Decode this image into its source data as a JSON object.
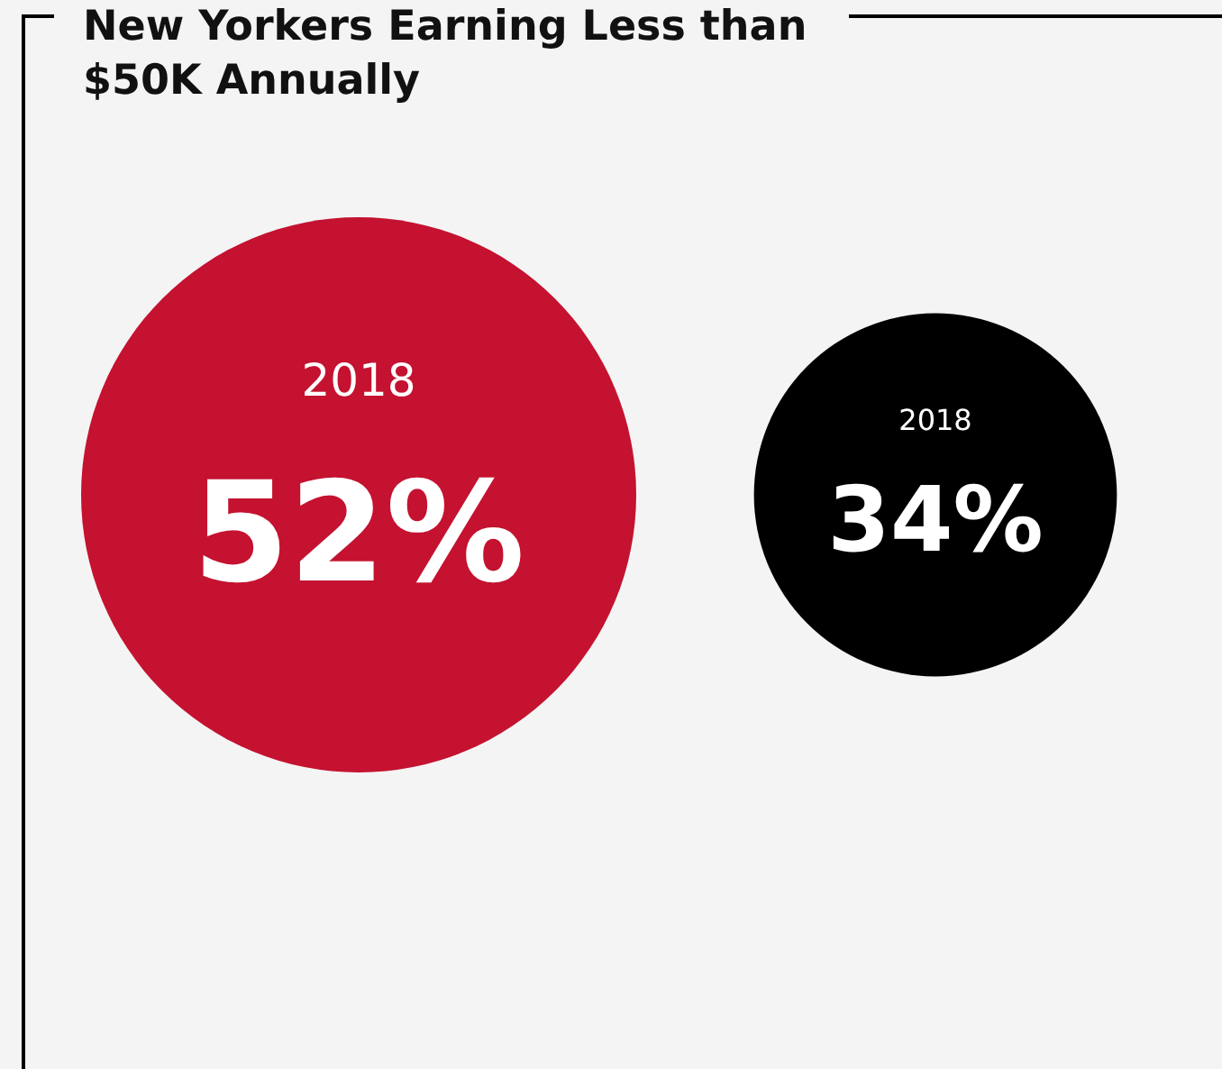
{
  "chart_data": {
    "type": "other",
    "title": "New Yorkers Earning Less than $50K Annually",
    "categories": [
      "2018",
      "2018"
    ],
    "values": [
      52,
      34
    ],
    "value_labels": [
      "52%",
      "34%"
    ],
    "colors": [
      "#c41230",
      "#000000"
    ],
    "data_labels": true
  }
}
